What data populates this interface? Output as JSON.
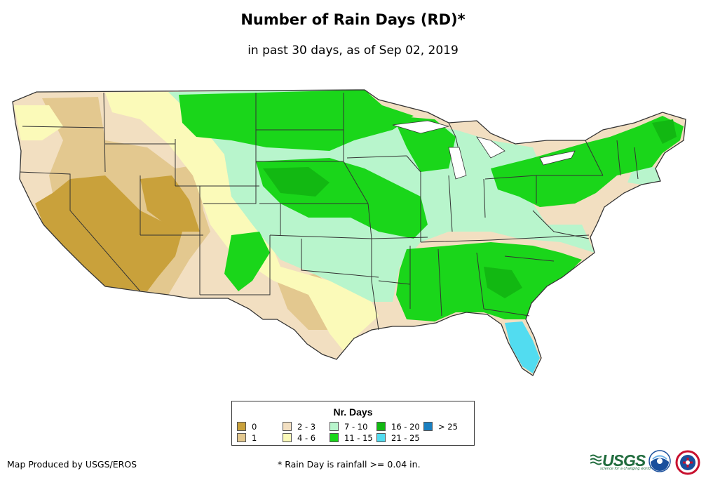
{
  "title": "Number of Rain Days (RD)*",
  "subtitle": "in past 30 days, as of Sep 02, 2019",
  "legend": {
    "title": "Nr. Days",
    "items": [
      {
        "label": "0",
        "color": "#c9a13b"
      },
      {
        "label": "1",
        "color": "#e3c88f"
      },
      {
        "label": "2 - 3",
        "color": "#f2dfc1"
      },
      {
        "label": "4 - 6",
        "color": "#fbfab9"
      },
      {
        "label": "7 - 10",
        "color": "#b8f5cc"
      },
      {
        "label": "11 - 15",
        "color": "#1ad61a"
      },
      {
        "label": "16 - 20",
        "color": "#12b812"
      },
      {
        "label": "21 - 25",
        "color": "#52dcf0"
      },
      {
        "label": "> 25",
        "color": "#1a7fc0"
      }
    ]
  },
  "credit": "Map Produced by USGS/EROS",
  "footnote": "* Rain Day is rainfall >= 0.04 in.",
  "logos": {
    "usgs": "USGS",
    "usgs_tagline": "science for a changing world",
    "noaa": "noaa-logo",
    "nws": "nws-logo"
  }
}
